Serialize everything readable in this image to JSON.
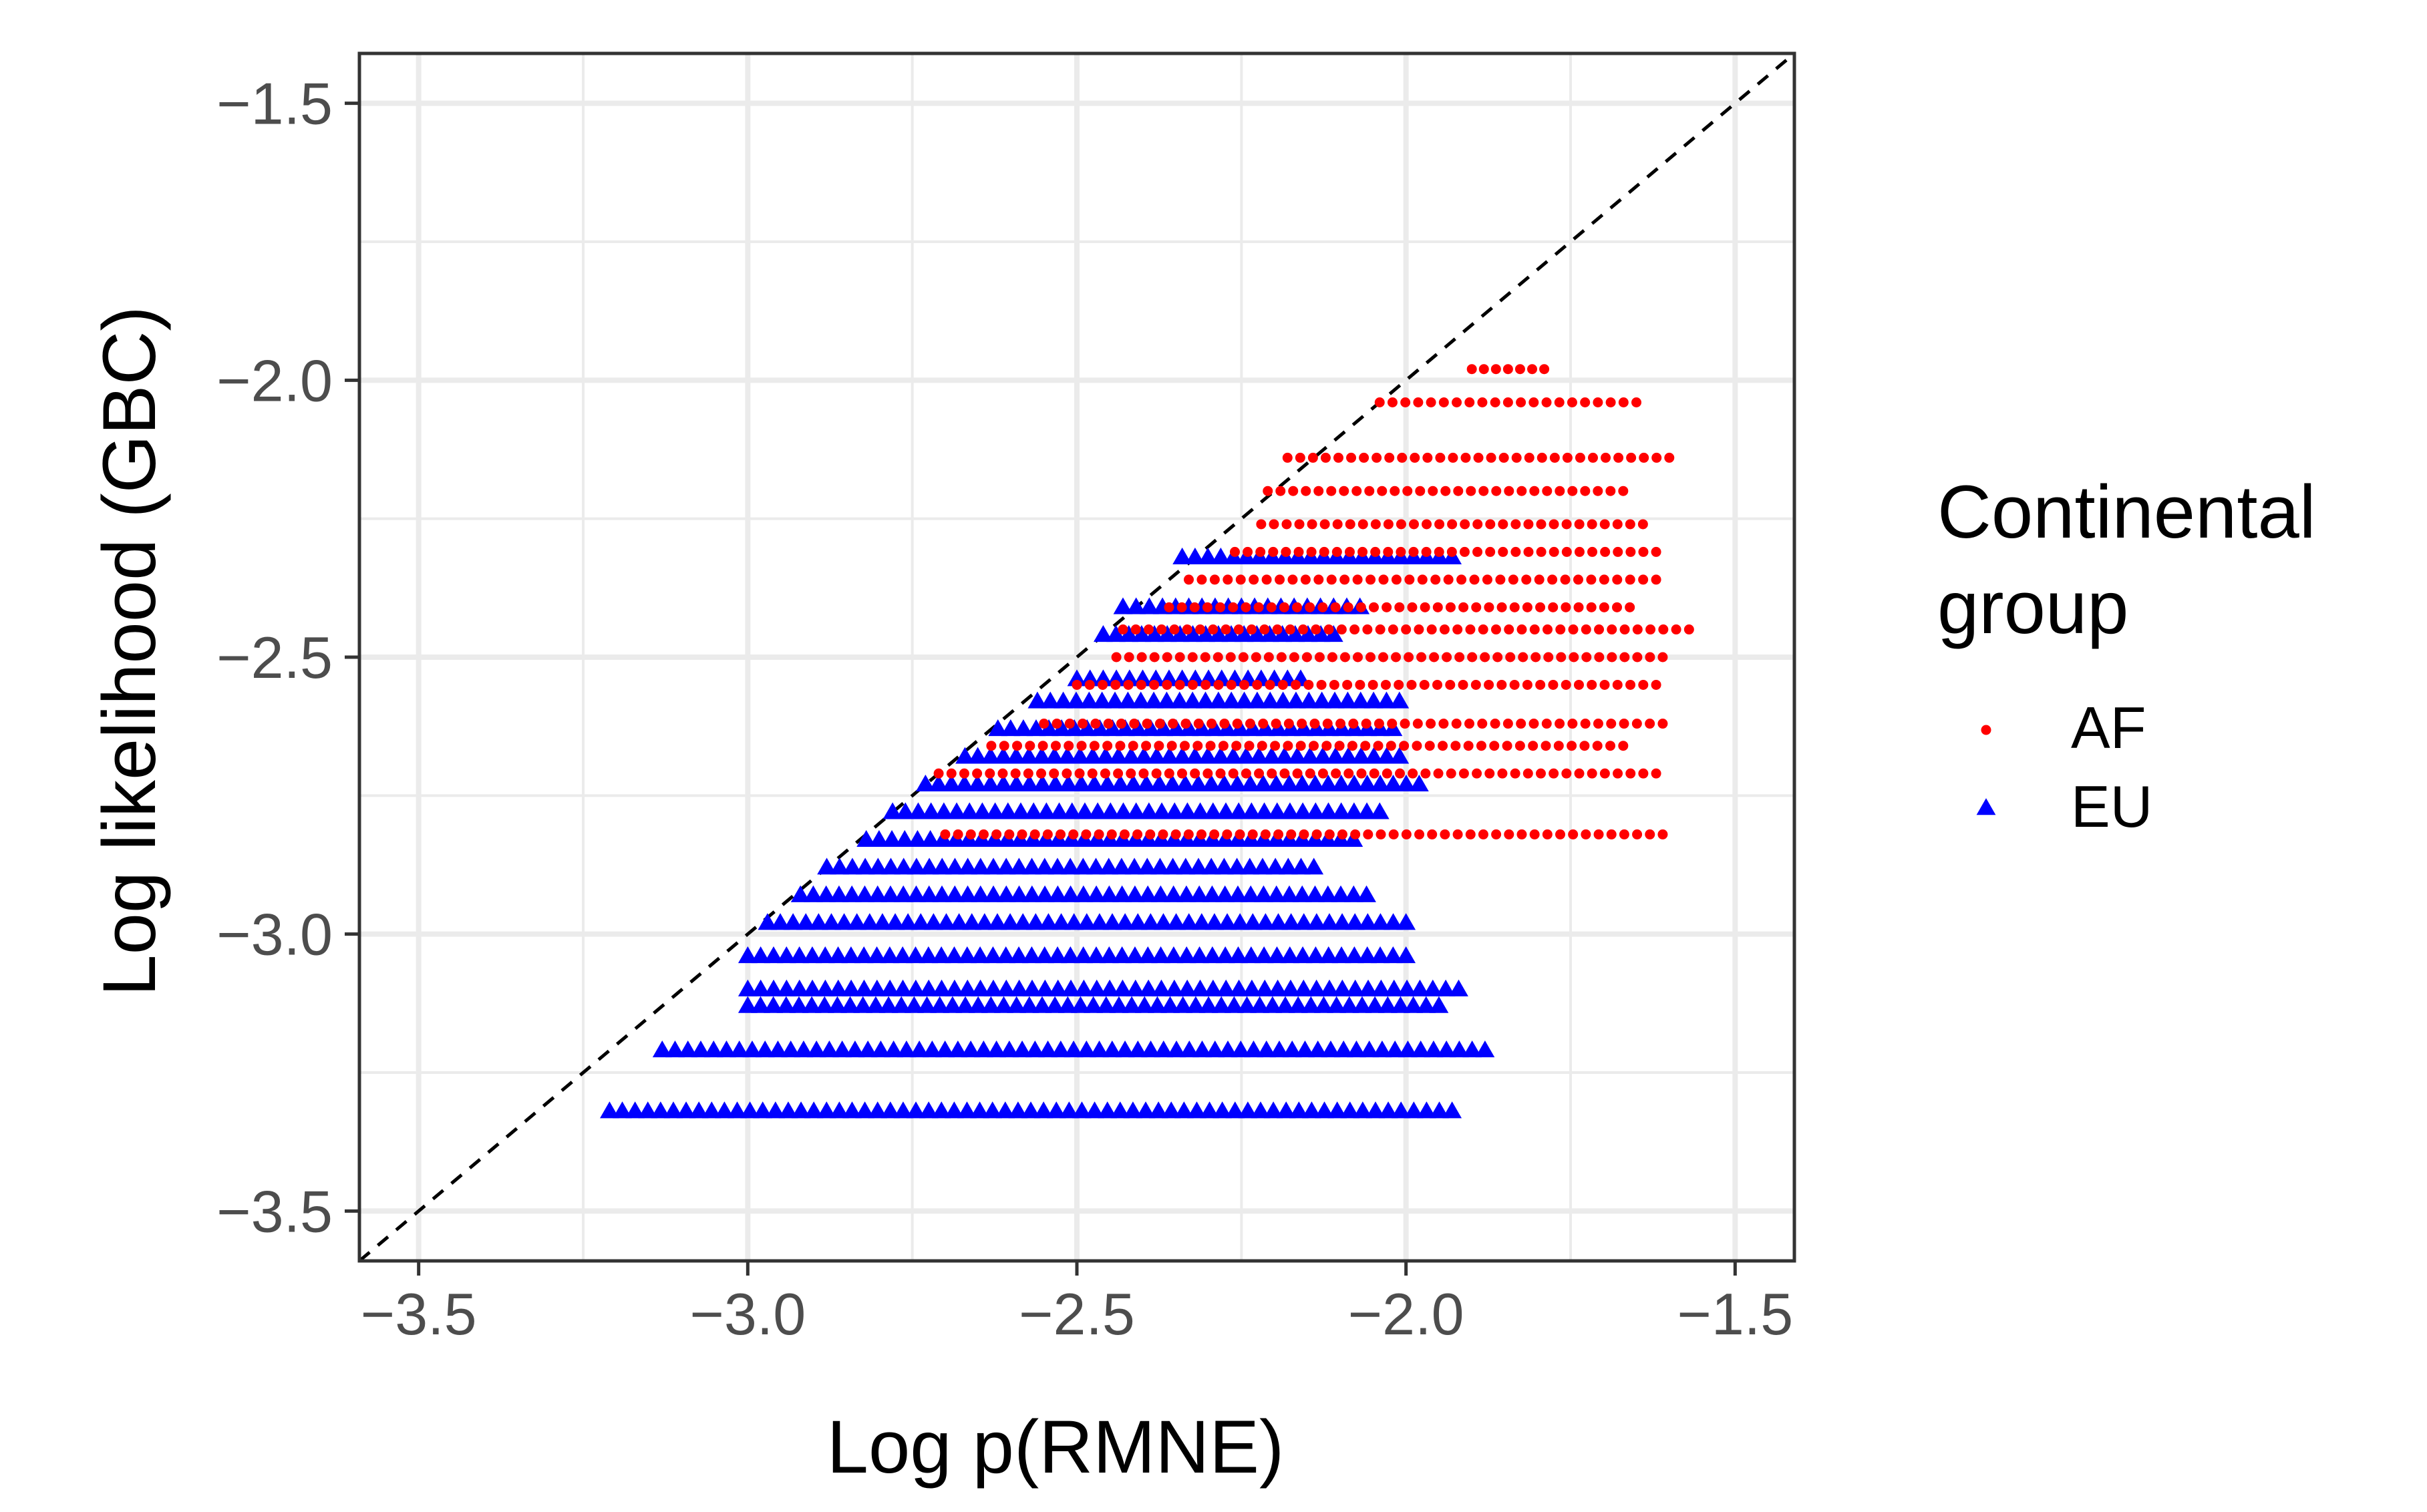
{
  "chart_data": {
    "type": "scatter",
    "xlabel": "Log p(RMNE)",
    "ylabel": "Log likelihood (GBC)",
    "xlim": [
      -3.59,
      -1.41
    ],
    "ylim": [
      -3.59,
      -1.41
    ],
    "x_ticks": [
      -3.5,
      -3.0,
      -2.5,
      -2.0,
      -1.5
    ],
    "y_ticks": [
      -3.5,
      -3.0,
      -2.5,
      -2.0,
      -1.5
    ],
    "x_tick_labels": [
      "−3.5",
      "−3.0",
      "−2.5",
      "−2.0",
      "−1.5"
    ],
    "y_tick_labels": [
      "−3.5",
      "−3.0",
      "−2.5",
      "−2.0",
      "−1.5"
    ],
    "grid": true,
    "reference_line": {
      "type": "identity",
      "style": "dashed",
      "color": "#000000"
    },
    "legend": {
      "title_lines": [
        "Continental",
        "group"
      ],
      "position": "right"
    },
    "series": [
      {
        "name": "AF",
        "marker": "circle",
        "color": "#ff0000",
        "bands": [
          {
            "y": -1.98,
            "x_start": -1.9,
            "x_end": -1.79
          },
          {
            "y": -2.04,
            "x_start": -2.04,
            "x_end": -1.65
          },
          {
            "y": -2.14,
            "x_start": -2.18,
            "x_end": -1.6
          },
          {
            "y": -2.2,
            "x_start": -2.21,
            "x_end": -1.67
          },
          {
            "y": -2.26,
            "x_start": -2.22,
            "x_end": -1.64
          },
          {
            "y": -2.31,
            "x_start": -2.26,
            "x_end": -1.62
          },
          {
            "y": -2.36,
            "x_start": -2.33,
            "x_end": -1.62
          },
          {
            "y": -2.41,
            "x_start": -2.36,
            "x_end": -1.66
          },
          {
            "y": -2.45,
            "x_start": -2.43,
            "x_end": -1.57
          },
          {
            "y": -2.5,
            "x_start": -2.44,
            "x_end": -1.61
          },
          {
            "y": -2.55,
            "x_start": -2.5,
            "x_end": -1.62
          },
          {
            "y": -2.62,
            "x_start": -2.55,
            "x_end": -1.61
          },
          {
            "y": -2.66,
            "x_start": -2.63,
            "x_end": -1.67
          },
          {
            "y": -2.71,
            "x_start": -2.71,
            "x_end": -1.62
          },
          {
            "y": -2.82,
            "x_start": -2.7,
            "x_end": -1.61
          }
        ]
      },
      {
        "name": "EU",
        "marker": "triangle",
        "color": "#0000ff",
        "bands": [
          {
            "y": -2.32,
            "x_start": -2.34,
            "x_end": -1.93
          },
          {
            "y": -2.41,
            "x_start": -2.43,
            "x_end": -2.07
          },
          {
            "y": -2.46,
            "x_start": -2.46,
            "x_end": -2.11
          },
          {
            "y": -2.54,
            "x_start": -2.5,
            "x_end": -2.16
          },
          {
            "y": -2.58,
            "x_start": -2.56,
            "x_end": -2.01
          },
          {
            "y": -2.63,
            "x_start": -2.62,
            "x_end": -2.02
          },
          {
            "y": -2.68,
            "x_start": -2.67,
            "x_end": -2.01
          },
          {
            "y": -2.73,
            "x_start": -2.73,
            "x_end": -1.98
          },
          {
            "y": -2.78,
            "x_start": -2.78,
            "x_end": -2.04
          },
          {
            "y": -2.83,
            "x_start": -2.82,
            "x_end": -2.08
          },
          {
            "y": -2.88,
            "x_start": -2.88,
            "x_end": -2.14
          },
          {
            "y": -2.93,
            "x_start": -2.92,
            "x_end": -2.06
          },
          {
            "y": -2.98,
            "x_start": -2.97,
            "x_end": -2.0
          },
          {
            "y": -3.04,
            "x_start": -3.0,
            "x_end": -2.0
          },
          {
            "y": -3.1,
            "x_start": -3.0,
            "x_end": -1.92
          },
          {
            "y": -3.13,
            "x_start": -3.0,
            "x_end": -1.95
          },
          {
            "y": -3.21,
            "x_start": -3.13,
            "x_end": -1.88
          },
          {
            "y": -3.32,
            "x_start": -3.21,
            "x_end": -1.93
          }
        ]
      }
    ]
  }
}
